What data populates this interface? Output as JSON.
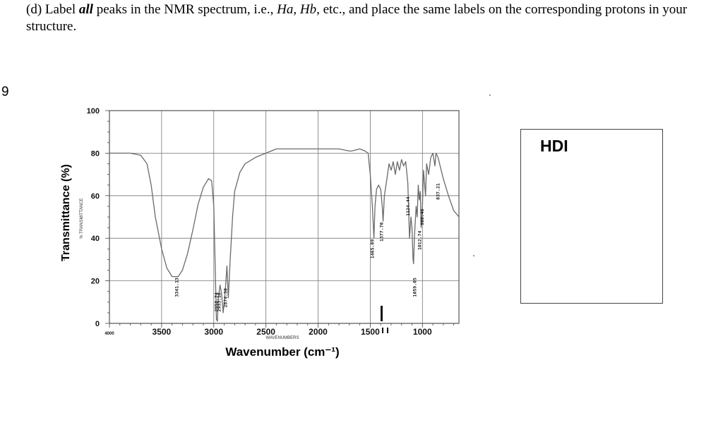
{
  "question": {
    "prefix": "(d) Label",
    "emphasis": "all",
    "mid": "peaks in the NMR spectrum, i.e.,",
    "ha": "Ha,",
    "hb": "Hb",
    "suffix": ", etc., and place the same labels on the corresponding protons in your structure."
  },
  "margin_number": "9",
  "hdi": {
    "label": "HDI"
  },
  "chart_data": {
    "type": "line",
    "ylabel": "Transmittance (%)",
    "ylabel_small": "% TRANSMITTANCE",
    "xlabel": "Wavenumber (cm⁻¹)",
    "xlabel_small": "WAVENUMBERS",
    "xlim": [
      4000,
      650
    ],
    "ylim": [
      0,
      100
    ],
    "x_ticks": [
      4000,
      3500,
      3000,
      2500,
      2000,
      1500,
      1000
    ],
    "x_tick_labels": [
      "4000",
      "3500",
      "3000",
      "2500",
      "2000",
      "1500",
      "1000"
    ],
    "y_ticks": [
      0,
      20,
      40,
      60,
      80,
      100
    ],
    "y_tick_labels": [
      "0",
      "20",
      "40",
      "60",
      "80",
      "100"
    ],
    "grid": true,
    "series": [
      {
        "points": [
          [
            4000,
            80
          ],
          [
            3800,
            80
          ],
          [
            3700,
            79
          ],
          [
            3640,
            75
          ],
          [
            3600,
            65
          ],
          [
            3560,
            50
          ],
          [
            3500,
            35
          ],
          [
            3450,
            26
          ],
          [
            3400,
            22
          ],
          [
            3341,
            22
          ],
          [
            3300,
            25
          ],
          [
            3250,
            33
          ],
          [
            3200,
            44
          ],
          [
            3150,
            56
          ],
          [
            3100,
            64
          ],
          [
            3050,
            68
          ],
          [
            3020,
            67
          ],
          [
            3000,
            55
          ],
          [
            2975,
            2
          ],
          [
            2965,
            1
          ],
          [
            2955,
            12
          ],
          [
            2940,
            18
          ],
          [
            2925,
            14
          ],
          [
            2910,
            5
          ],
          [
            2890,
            15
          ],
          [
            2874,
            27
          ],
          [
            2860,
            12
          ],
          [
            2845,
            28
          ],
          [
            2820,
            50
          ],
          [
            2800,
            62
          ],
          [
            2750,
            71
          ],
          [
            2700,
            75
          ],
          [
            2600,
            78
          ],
          [
            2500,
            80
          ],
          [
            2400,
            82
          ],
          [
            2300,
            82
          ],
          [
            2200,
            82
          ],
          [
            2100,
            82
          ],
          [
            2000,
            82
          ],
          [
            1900,
            82
          ],
          [
            1800,
            82
          ],
          [
            1700,
            81
          ],
          [
            1680,
            81
          ],
          [
            1600,
            82
          ],
          [
            1550,
            81
          ],
          [
            1520,
            80
          ],
          [
            1500,
            70
          ],
          [
            1480,
            55
          ],
          [
            1465,
            40
          ],
          [
            1455,
            55
          ],
          [
            1440,
            63
          ],
          [
            1420,
            65
          ],
          [
            1400,
            63
          ],
          [
            1385,
            55
          ],
          [
            1377,
            48
          ],
          [
            1365,
            60
          ],
          [
            1340,
            68
          ],
          [
            1320,
            75
          ],
          [
            1300,
            72
          ],
          [
            1280,
            76
          ],
          [
            1260,
            70
          ],
          [
            1240,
            76
          ],
          [
            1220,
            72
          ],
          [
            1200,
            77
          ],
          [
            1180,
            74
          ],
          [
            1160,
            76
          ],
          [
            1140,
            66
          ],
          [
            1124,
            40
          ],
          [
            1110,
            50
          ],
          [
            1100,
            45
          ],
          [
            1090,
            30
          ],
          [
            1085,
            28
          ],
          [
            1075,
            42
          ],
          [
            1060,
            55
          ],
          [
            1050,
            50
          ],
          [
            1040,
            65
          ],
          [
            1030,
            58
          ],
          [
            1020,
            62
          ],
          [
            1012,
            45
          ],
          [
            1000,
            55
          ],
          [
            990,
            72
          ],
          [
            970,
            60
          ],
          [
            960,
            75
          ],
          [
            940,
            70
          ],
          [
            920,
            78
          ],
          [
            900,
            80
          ],
          [
            880,
            74
          ],
          [
            870,
            80
          ],
          [
            850,
            78
          ],
          [
            800,
            68
          ],
          [
            750,
            60
          ],
          [
            700,
            53
          ],
          [
            650,
            50
          ]
        ]
      }
    ],
    "peak_labels": [
      {
        "x": 3341,
        "y": 17,
        "text": "3341.13"
      },
      {
        "x": 2962,
        "y": 10,
        "text": "2958.74"
      },
      {
        "x": 2935,
        "y": 10,
        "text": "2933.18"
      },
      {
        "x": 2874,
        "y": 12,
        "text": "2874.30"
      },
      {
        "x": 1465,
        "y": 35,
        "text": "1465.09"
      },
      {
        "x": 1377,
        "y": 43,
        "text": "1377.70"
      },
      {
        "x": 1124,
        "y": 55,
        "text": "1124.44"
      },
      {
        "x": 1059,
        "y": 17,
        "text": "1059.05"
      },
      {
        "x": 1012,
        "y": 39,
        "text": "1012.74"
      },
      {
        "x": 988,
        "y": 50,
        "text": "988.48"
      },
      {
        "x": 837,
        "y": 62,
        "text": "837.21"
      }
    ],
    "colors": {
      "curve": "#6a6a6a",
      "grid": "#777777",
      "frame": "#555555"
    }
  }
}
